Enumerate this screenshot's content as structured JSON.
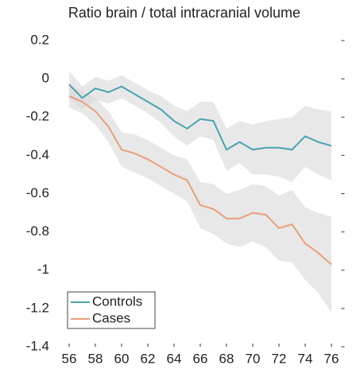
{
  "chart_data": {
    "type": "line",
    "title": "Ratio brain / total intracranial volume",
    "x": [
      56,
      57,
      58,
      59,
      60,
      61,
      62,
      63,
      64,
      65,
      66,
      67,
      68,
      69,
      70,
      71,
      72,
      73,
      74,
      75,
      76
    ],
    "series": [
      {
        "name": "Controls",
        "color": "#4aa3b0",
        "values": [
          -0.03,
          -0.1,
          -0.05,
          -0.07,
          -0.04,
          -0.08,
          -0.12,
          -0.16,
          -0.22,
          -0.26,
          -0.21,
          -0.22,
          -0.37,
          -0.33,
          -0.37,
          -0.36,
          -0.36,
          -0.37,
          -0.3,
          -0.33,
          -0.35
        ],
        "upper": [
          0.04,
          -0.04,
          0.01,
          -0.01,
          0.02,
          -0.02,
          -0.06,
          -0.09,
          -0.14,
          -0.17,
          -0.12,
          -0.12,
          -0.26,
          -0.22,
          -0.24,
          -0.22,
          -0.21,
          -0.2,
          -0.14,
          -0.16,
          -0.17
        ],
        "lower": [
          -0.1,
          -0.16,
          -0.11,
          -0.13,
          -0.1,
          -0.14,
          -0.18,
          -0.23,
          -0.3,
          -0.35,
          -0.3,
          -0.32,
          -0.48,
          -0.44,
          -0.5,
          -0.5,
          -0.51,
          -0.54,
          -0.46,
          -0.5,
          -0.53
        ]
      },
      {
        "name": "Cases",
        "color": "#e8a07a",
        "values": [
          -0.09,
          -0.12,
          -0.17,
          -0.25,
          -0.37,
          -0.39,
          -0.42,
          -0.46,
          -0.5,
          -0.53,
          -0.66,
          -0.68,
          -0.73,
          -0.73,
          -0.7,
          -0.71,
          -0.78,
          -0.76,
          -0.86,
          -0.91,
          -0.97
        ],
        "upper": [
          -0.03,
          -0.06,
          -0.1,
          -0.17,
          -0.28,
          -0.29,
          -0.32,
          -0.36,
          -0.4,
          -0.42,
          -0.54,
          -0.55,
          -0.6,
          -0.58,
          -0.55,
          -0.56,
          -0.61,
          -0.58,
          -0.67,
          -0.7,
          -0.72
        ],
        "lower": [
          -0.15,
          -0.18,
          -0.24,
          -0.33,
          -0.46,
          -0.49,
          -0.52,
          -0.56,
          -0.6,
          -0.64,
          -0.78,
          -0.81,
          -0.86,
          -0.88,
          -0.85,
          -0.88,
          -0.95,
          -0.96,
          -1.05,
          -1.12,
          -1.22
        ]
      }
    ],
    "xlim": [
      55,
      77
    ],
    "xticks": [
      56,
      58,
      60,
      62,
      64,
      66,
      68,
      70,
      72,
      74,
      76
    ],
    "ylim": [
      -1.4,
      0.2
    ],
    "yticks": [
      -1.4,
      -1.2,
      -1,
      -0.8,
      -0.6,
      -0.4,
      -0.2,
      0,
      0.2
    ],
    "legend": "lower left"
  }
}
